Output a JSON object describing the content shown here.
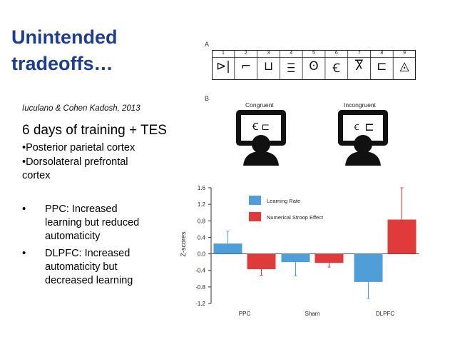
{
  "slide": {
    "title_line1": "Unintended",
    "title_line2": "tradeoffs…",
    "citation": "Iuculano & Cohen Kadosh, 2013",
    "subtitle": "6 days of training + TES",
    "bullet1": "•Posterior parietal cortex",
    "bullet2_line1": "•Dorsolateral prefrontal",
    "bullet2_line2": "cortex",
    "finding_marker": "•",
    "finding1_l1": "PPC: Increased",
    "finding1_l2": "learning but reduced",
    "finding1_l3": "automaticity",
    "finding2_l1": "DLPFC: Increased",
    "finding2_l2": "automaticity but",
    "finding2_l3": "decreased learning"
  },
  "figure": {
    "panel_a": "A",
    "panel_b": "B",
    "symbol_numbers": [
      "1",
      "2",
      "3",
      "4",
      "5",
      "6",
      "7",
      "8",
      "9"
    ],
    "symbols": [
      "⊳|",
      "⌐",
      "⊔",
      "Ⲷ",
      "ʘ",
      "Ꞓ",
      "Ⴟ",
      "⊏",
      "◬"
    ],
    "congruent_label": "Congruent",
    "incongruent_label": "Incongruent",
    "congruent_symbols": "Ꞓ  ⊏",
    "incongruent_symbols": "Ꞓ  ⊏"
  },
  "chart_data": {
    "type": "bar",
    "categories": [
      "PPC",
      "Sham",
      "DLPFC"
    ],
    "series": [
      {
        "name": "Learning Rate",
        "values": [
          0.25,
          -0.2,
          -0.68
        ],
        "errors": [
          0.3,
          0.33,
          0.4
        ],
        "color": "#4f9ed8"
      },
      {
        "name": "Numerical Stroop Effect",
        "values": [
          -0.37,
          -0.22,
          0.83
        ],
        "errors": [
          0.15,
          0.1,
          0.77
        ],
        "color": "#e03a3a"
      }
    ],
    "ylabel": "Z-scores",
    "ylim": [
      -1.2,
      1.6
    ],
    "yticks": [
      "1.6",
      "1.2",
      "0.8",
      "0.4",
      "0.0",
      "-0.4",
      "-0.8",
      "-1.2"
    ],
    "legend_placement": "top"
  }
}
